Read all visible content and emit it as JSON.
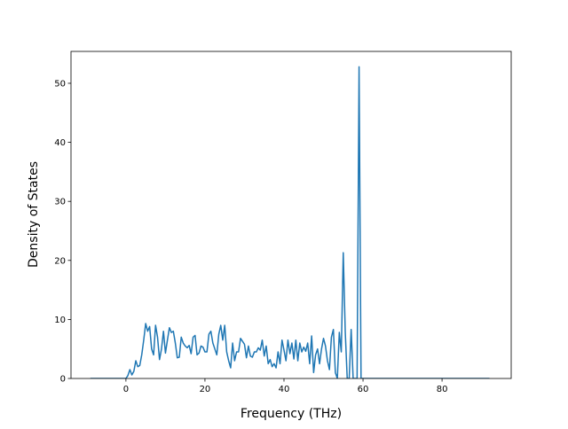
{
  "chart_data": {
    "type": "line",
    "xlabel": "Frequency (THz)",
    "ylabel": "Density of States",
    "x": [
      -9,
      0,
      0.5,
      1,
      1.5,
      2,
      2.5,
      3,
      3.5,
      4,
      4.5,
      5,
      5.5,
      6,
      6.5,
      7,
      7.5,
      8,
      8.5,
      9,
      9.5,
      10,
      10.5,
      11,
      11.5,
      12,
      12.5,
      13,
      13.5,
      14,
      14.5,
      15,
      15.5,
      16,
      16.5,
      17,
      17.5,
      18,
      18.5,
      19,
      19.5,
      20,
      20.5,
      21,
      21.5,
      22,
      22.5,
      23,
      23.5,
      24,
      24.5,
      25,
      25.5,
      26,
      26.5,
      27,
      27.5,
      28,
      28.5,
      29,
      29.5,
      30,
      30.5,
      31,
      31.5,
      32,
      32.5,
      33,
      33.5,
      34,
      34.5,
      35,
      35.5,
      36,
      36.5,
      37,
      37.5,
      38,
      38.5,
      39,
      39.5,
      40,
      40.5,
      41,
      41.5,
      42,
      42.5,
      43,
      43.5,
      44,
      44.5,
      45,
      45.5,
      46,
      46.5,
      47,
      47.5,
      48,
      48.5,
      49,
      49.5,
      50,
      50.5,
      51,
      51.5,
      52,
      52.5,
      53,
      53.5,
      54,
      54.5,
      55,
      55.5,
      56,
      56.5,
      57,
      57.5,
      58,
      58.5,
      59,
      59.5,
      60,
      92
    ],
    "series": [
      {
        "color": "#1f77b4",
        "values": [
          0,
          0,
          0.5,
          1.5,
          0.6,
          1.2,
          3,
          2,
          2.2,
          4,
          6.5,
          9.3,
          8,
          8.8,
          5,
          4,
          9,
          7,
          3.2,
          5,
          8,
          4.3,
          6.5,
          8.6,
          7.8,
          8,
          6,
          3.5,
          3.6,
          7,
          6,
          5.5,
          5.2,
          5.6,
          4.2,
          7,
          7.3,
          4,
          4.3,
          5.5,
          5.3,
          4.5,
          4.5,
          7.5,
          8,
          6,
          5,
          4,
          7.5,
          9,
          6.5,
          9,
          4.5,
          3,
          1.8,
          6,
          3,
          4.5,
          4.5,
          6.8,
          6.3,
          5.8,
          3.5,
          5.5,
          3.8,
          3.6,
          4.5,
          4.5,
          5.2,
          4.8,
          6.5,
          3.8,
          5.5,
          2.5,
          3.2,
          2,
          2.5,
          1.8,
          4.5,
          2.5,
          6.5,
          4.8,
          3,
          6.5,
          4.2,
          6,
          3.3,
          6.5,
          3,
          6,
          4.5,
          5.3,
          4.6,
          6,
          2.5,
          7.2,
          1,
          4,
          5,
          2.5,
          5,
          6.8,
          5.5,
          3,
          1.5,
          7,
          8.3,
          1,
          0,
          7.8,
          4.5,
          21.3,
          8,
          0,
          0,
          8.3,
          0,
          0,
          0,
          52.8,
          0,
          0,
          0
        ]
      }
    ],
    "xlim": [
      -13.9,
      97.5
    ],
    "xticks": [
      0,
      20,
      40,
      60,
      80
    ],
    "ylim": [
      0,
      55.4
    ],
    "yticks": [
      0,
      10,
      20,
      30,
      40,
      50
    ]
  }
}
